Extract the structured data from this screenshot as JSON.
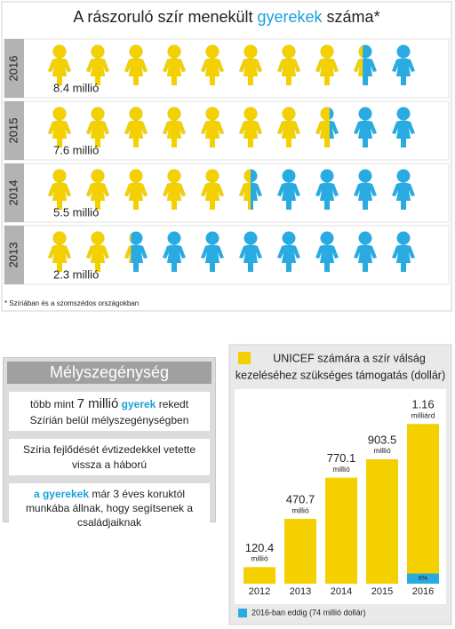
{
  "chart_data": [
    {
      "type": "pictogram",
      "title_parts": [
        "A rászoruló szír menekült ",
        "gyerekek",
        " száma*"
      ],
      "categories": [
        "2016",
        "2015",
        "2014",
        "2013"
      ],
      "values": [
        8.4,
        7.6,
        5.5,
        2.3
      ],
      "value_labels": [
        "8.4 millió",
        "7.6 millió",
        "5.5 millió",
        "2.3 millió"
      ],
      "xlim": [
        0,
        10
      ],
      "color": "#f5d000",
      "empty_color": "#29abe2",
      "highlight_color": "#1aa0dc",
      "footnote": "* Szíriában és a szomszédos országokban"
    },
    {
      "type": "bar",
      "title": [
        "UNICEF számára a szír válság",
        "kezeléséhez szükséges támogatás (dollár)"
      ],
      "categories": [
        "2012",
        "2013",
        "2014",
        "2015",
        "2016"
      ],
      "values": [
        120.4,
        470.7,
        770.1,
        903.5,
        1160
      ],
      "value_labels": [
        [
          "120.4",
          "millió"
        ],
        [
          "470.7",
          "millió"
        ],
        [
          "770.1",
          "millió"
        ],
        [
          "903.5",
          "millió"
        ],
        [
          "1.16",
          "milliárd"
        ]
      ],
      "color": "#f5d000",
      "ylim": [
        0,
        1400
      ],
      "funded": {
        "name": "2016-ban eddig (74 millió dollár)",
        "color": "#29abe2",
        "values": [
          null,
          null,
          null,
          null,
          74
        ],
        "value_labels": [
          null,
          null,
          null,
          null,
          "6%"
        ]
      }
    }
  ],
  "poverty": {
    "title": "Mélyszegénység",
    "items": [
      [
        {
          "text": "több mint "
        },
        {
          "text": "7 millió",
          "style": "big"
        },
        {
          "text": " gyerek",
          "style": "blue"
        },
        {
          "text": " rekedt Szírián belül mélyszegénységben"
        }
      ],
      [
        {
          "text": "Szíria fejlődését évtizedekkel vetette vissza a háború"
        }
      ],
      [
        {
          "text": "a gyerekek",
          "style": "blue"
        },
        {
          "text": " már 3 éves koruktól munkába állnak, hogy segítsenek a családjaiknak"
        }
      ]
    ]
  }
}
